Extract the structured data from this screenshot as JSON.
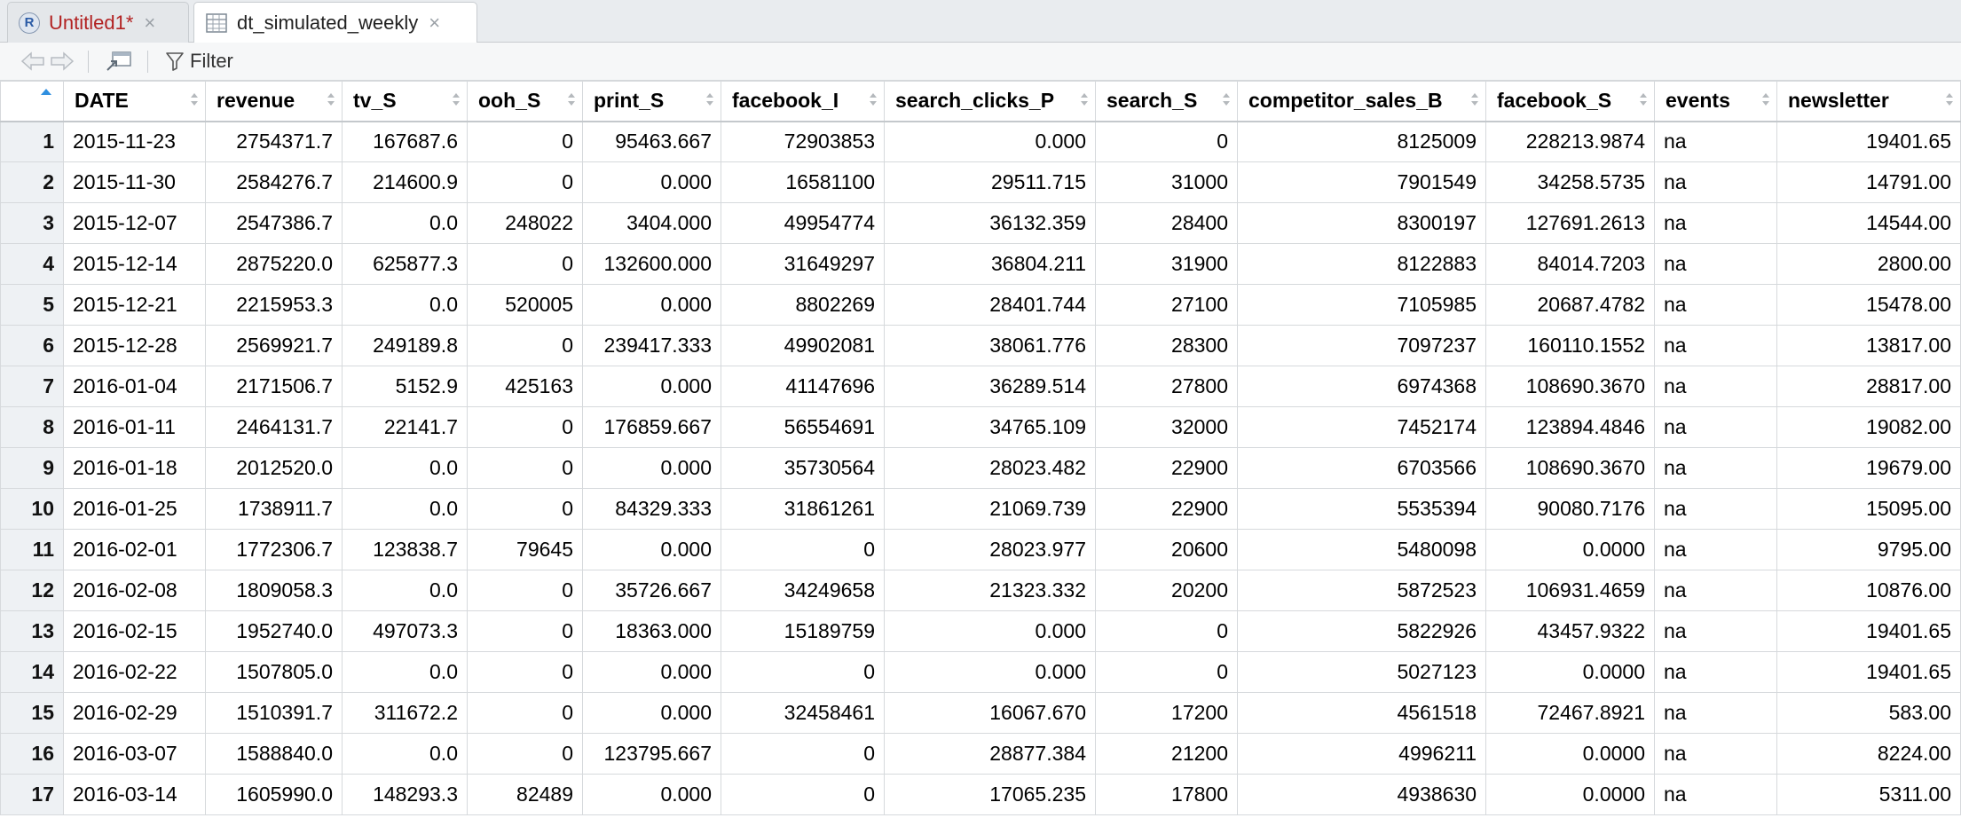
{
  "tabs": [
    {
      "label": "Untitled1*",
      "icon": "r-script-icon",
      "modified": true
    },
    {
      "label": "dt_simulated_weekly",
      "icon": "table-icon",
      "modified": false
    }
  ],
  "toolbar": {
    "filter_label": "Filter"
  },
  "columns": [
    {
      "key": "DATE",
      "label": "DATE",
      "align": "txt"
    },
    {
      "key": "revenue",
      "label": "revenue",
      "align": "num"
    },
    {
      "key": "tv_S",
      "label": "tv_S",
      "align": "num"
    },
    {
      "key": "ooh_S",
      "label": "ooh_S",
      "align": "num"
    },
    {
      "key": "print_S",
      "label": "print_S",
      "align": "num"
    },
    {
      "key": "facebook_I",
      "label": "facebook_I",
      "align": "num"
    },
    {
      "key": "search_clicks_P",
      "label": "search_clicks_P",
      "align": "num"
    },
    {
      "key": "search_S",
      "label": "search_S",
      "align": "num"
    },
    {
      "key": "competitor_sales_B",
      "label": "competitor_sales_B",
      "align": "num"
    },
    {
      "key": "facebook_S",
      "label": "facebook_S",
      "align": "num"
    },
    {
      "key": "events",
      "label": "events",
      "align": "txt"
    },
    {
      "key": "newsletter",
      "label": "newsletter",
      "align": "num"
    }
  ],
  "rows": [
    [
      "1",
      "2015-11-23",
      "2754371.7",
      "167687.6",
      "0",
      "95463.667",
      "72903853",
      "0.000",
      "0",
      "8125009",
      "228213.9874",
      "na",
      "19401.65"
    ],
    [
      "2",
      "2015-11-30",
      "2584276.7",
      "214600.9",
      "0",
      "0.000",
      "16581100",
      "29511.715",
      "31000",
      "7901549",
      "34258.5735",
      "na",
      "14791.00"
    ],
    [
      "3",
      "2015-12-07",
      "2547386.7",
      "0.0",
      "248022",
      "3404.000",
      "49954774",
      "36132.359",
      "28400",
      "8300197",
      "127691.2613",
      "na",
      "14544.00"
    ],
    [
      "4",
      "2015-12-14",
      "2875220.0",
      "625877.3",
      "0",
      "132600.000",
      "31649297",
      "36804.211",
      "31900",
      "8122883",
      "84014.7203",
      "na",
      "2800.00"
    ],
    [
      "5",
      "2015-12-21",
      "2215953.3",
      "0.0",
      "520005",
      "0.000",
      "8802269",
      "28401.744",
      "27100",
      "7105985",
      "20687.4782",
      "na",
      "15478.00"
    ],
    [
      "6",
      "2015-12-28",
      "2569921.7",
      "249189.8",
      "0",
      "239417.333",
      "49902081",
      "38061.776",
      "28300",
      "7097237",
      "160110.1552",
      "na",
      "13817.00"
    ],
    [
      "7",
      "2016-01-04",
      "2171506.7",
      "5152.9",
      "425163",
      "0.000",
      "41147696",
      "36289.514",
      "27800",
      "6974368",
      "108690.3670",
      "na",
      "28817.00"
    ],
    [
      "8",
      "2016-01-11",
      "2464131.7",
      "22141.7",
      "0",
      "176859.667",
      "56554691",
      "34765.109",
      "32000",
      "7452174",
      "123894.4846",
      "na",
      "19082.00"
    ],
    [
      "9",
      "2016-01-18",
      "2012520.0",
      "0.0",
      "0",
      "0.000",
      "35730564",
      "28023.482",
      "22900",
      "6703566",
      "108690.3670",
      "na",
      "19679.00"
    ],
    [
      "10",
      "2016-01-25",
      "1738911.7",
      "0.0",
      "0",
      "84329.333",
      "31861261",
      "21069.739",
      "22900",
      "5535394",
      "90080.7176",
      "na",
      "15095.00"
    ],
    [
      "11",
      "2016-02-01",
      "1772306.7",
      "123838.7",
      "79645",
      "0.000",
      "0",
      "28023.977",
      "20600",
      "5480098",
      "0.0000",
      "na",
      "9795.00"
    ],
    [
      "12",
      "2016-02-08",
      "1809058.3",
      "0.0",
      "0",
      "35726.667",
      "34249658",
      "21323.332",
      "20200",
      "5872523",
      "106931.4659",
      "na",
      "10876.00"
    ],
    [
      "13",
      "2016-02-15",
      "1952740.0",
      "497073.3",
      "0",
      "18363.000",
      "15189759",
      "0.000",
      "0",
      "5822926",
      "43457.9322",
      "na",
      "19401.65"
    ],
    [
      "14",
      "2016-02-22",
      "1507805.0",
      "0.0",
      "0",
      "0.000",
      "0",
      "0.000",
      "0",
      "5027123",
      "0.0000",
      "na",
      "19401.65"
    ],
    [
      "15",
      "2016-02-29",
      "1510391.7",
      "311672.2",
      "0",
      "0.000",
      "32458461",
      "16067.670",
      "17200",
      "4561518",
      "72467.8921",
      "na",
      "583.00"
    ],
    [
      "16",
      "2016-03-07",
      "1588840.0",
      "0.0",
      "0",
      "123795.667",
      "0",
      "28877.384",
      "21200",
      "4996211",
      "0.0000",
      "na",
      "8224.00"
    ],
    [
      "17",
      "2016-03-14",
      "1605990.0",
      "148293.3",
      "82489",
      "0.000",
      "0",
      "17065.235",
      "17800",
      "4938630",
      "0.0000",
      "na",
      "5311.00"
    ]
  ]
}
